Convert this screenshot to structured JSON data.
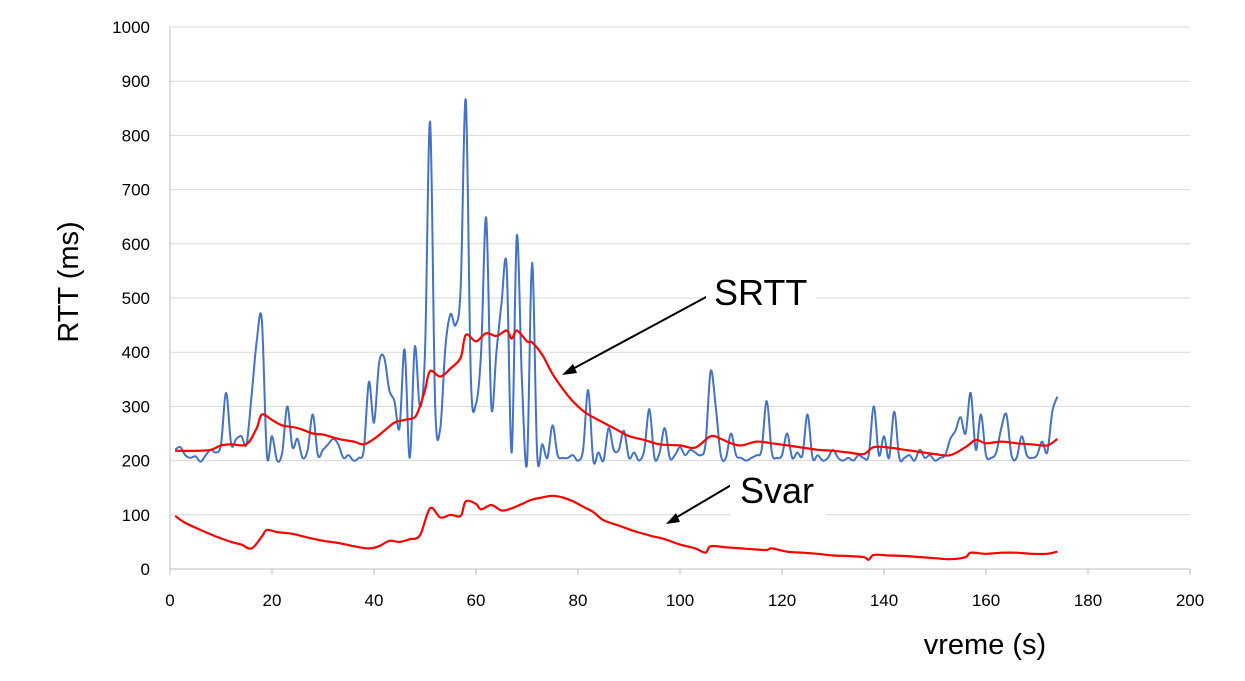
{
  "chart_data": {
    "type": "line",
    "title": "",
    "xlabel": "vreme (s)",
    "ylabel": "RTT (ms)",
    "xlim": [
      0,
      200
    ],
    "ylim": [
      0,
      1000
    ],
    "x_ticks": [
      0,
      20,
      40,
      60,
      80,
      100,
      120,
      140,
      160,
      180,
      200
    ],
    "y_ticks": [
      0,
      100,
      200,
      300,
      400,
      500,
      600,
      700,
      800,
      900,
      1000
    ],
    "grid": true,
    "legend": "none",
    "annotations": [
      {
        "text": "SRTT",
        "target_series": "srtt"
      },
      {
        "text": "Svar",
        "target_series": "svar"
      }
    ],
    "series": [
      {
        "id": "rtt",
        "color": "#4472C4",
        "points": [
          [
            1,
            220
          ],
          [
            2,
            225
          ],
          [
            3,
            210
          ],
          [
            4,
            205
          ],
          [
            5,
            208
          ],
          [
            6,
            198
          ],
          [
            7,
            210
          ],
          [
            8,
            220
          ],
          [
            9,
            215
          ],
          [
            10,
            230
          ],
          [
            11,
            325
          ],
          [
            12,
            230
          ],
          [
            13,
            240
          ],
          [
            14,
            245
          ],
          [
            15,
            230
          ],
          [
            16,
            320
          ],
          [
            17,
            420
          ],
          [
            18,
            460
          ],
          [
            19,
            210
          ],
          [
            20,
            245
          ],
          [
            21,
            200
          ],
          [
            22,
            215
          ],
          [
            23,
            300
          ],
          [
            24,
            225
          ],
          [
            25,
            240
          ],
          [
            26,
            205
          ],
          [
            27,
            220
          ],
          [
            28,
            285
          ],
          [
            29,
            210
          ],
          [
            30,
            220
          ],
          [
            31,
            230
          ],
          [
            32,
            240
          ],
          [
            33,
            230
          ],
          [
            34,
            205
          ],
          [
            35,
            210
          ],
          [
            36,
            200
          ],
          [
            37,
            205
          ],
          [
            38,
            220
          ],
          [
            39,
            345
          ],
          [
            40,
            270
          ],
          [
            41,
            380
          ],
          [
            42,
            390
          ],
          [
            43,
            330
          ],
          [
            44,
            310
          ],
          [
            45,
            260
          ],
          [
            46,
            405
          ],
          [
            47,
            205
          ],
          [
            48,
            410
          ],
          [
            49,
            300
          ],
          [
            50,
            400
          ],
          [
            51,
            825
          ],
          [
            52,
            300
          ],
          [
            53,
            260
          ],
          [
            54,
            410
          ],
          [
            55,
            470
          ],
          [
            56,
            450
          ],
          [
            57,
            520
          ],
          [
            58,
            865
          ],
          [
            59,
            350
          ],
          [
            60,
            305
          ],
          [
            61,
            400
          ],
          [
            62,
            648
          ],
          [
            63,
            300
          ],
          [
            64,
            400
          ],
          [
            65,
            490
          ],
          [
            66,
            560
          ],
          [
            67,
            215
          ],
          [
            68,
            615
          ],
          [
            69,
            350
          ],
          [
            70,
            195
          ],
          [
            71,
            565
          ],
          [
            72,
            210
          ],
          [
            73,
            230
          ],
          [
            74,
            205
          ],
          [
            75,
            265
          ],
          [
            76,
            210
          ],
          [
            77,
            205
          ],
          [
            78,
            205
          ],
          [
            79,
            210
          ],
          [
            80,
            200
          ],
          [
            81,
            220
          ],
          [
            82,
            330
          ],
          [
            83,
            200
          ],
          [
            84,
            215
          ],
          [
            85,
            200
          ],
          [
            86,
            260
          ],
          [
            87,
            220
          ],
          [
            88,
            220
          ],
          [
            89,
            255
          ],
          [
            90,
            205
          ],
          [
            91,
            215
          ],
          [
            92,
            200
          ],
          [
            93,
            220
          ],
          [
            94,
            295
          ],
          [
            95,
            205
          ],
          [
            96,
            215
          ],
          [
            97,
            260
          ],
          [
            98,
            205
          ],
          [
            99,
            210
          ],
          [
            100,
            225
          ],
          [
            101,
            210
          ],
          [
            102,
            220
          ],
          [
            103,
            215
          ],
          [
            104,
            210
          ],
          [
            105,
            230
          ],
          [
            106,
            365
          ],
          [
            107,
            300
          ],
          [
            108,
            210
          ],
          [
            109,
            205
          ],
          [
            110,
            250
          ],
          [
            111,
            210
          ],
          [
            112,
            205
          ],
          [
            113,
            200
          ],
          [
            114,
            205
          ],
          [
            115,
            210
          ],
          [
            116,
            220
          ],
          [
            117,
            310
          ],
          [
            118,
            215
          ],
          [
            119,
            205
          ],
          [
            120,
            210
          ],
          [
            121,
            250
          ],
          [
            122,
            205
          ],
          [
            123,
            215
          ],
          [
            124,
            210
          ],
          [
            125,
            285
          ],
          [
            126,
            205
          ],
          [
            127,
            210
          ],
          [
            128,
            200
          ],
          [
            129,
            205
          ],
          [
            130,
            220
          ],
          [
            131,
            205
          ],
          [
            132,
            200
          ],
          [
            133,
            205
          ],
          [
            134,
            200
          ],
          [
            135,
            210
          ],
          [
            136,
            205
          ],
          [
            137,
            210
          ],
          [
            138,
            300
          ],
          [
            139,
            210
          ],
          [
            140,
            245
          ],
          [
            141,
            205
          ],
          [
            142,
            290
          ],
          [
            143,
            205
          ],
          [
            144,
            205
          ],
          [
            145,
            210
          ],
          [
            146,
            200
          ],
          [
            147,
            220
          ],
          [
            148,
            205
          ],
          [
            149,
            210
          ],
          [
            150,
            200
          ],
          [
            151,
            205
          ],
          [
            152,
            210
          ],
          [
            153,
            240
          ],
          [
            154,
            255
          ],
          [
            155,
            280
          ],
          [
            156,
            250
          ],
          [
            157,
            325
          ],
          [
            158,
            220
          ],
          [
            159,
            285
          ],
          [
            160,
            210
          ],
          [
            161,
            205
          ],
          [
            162,
            215
          ],
          [
            163,
            260
          ],
          [
            164,
            285
          ],
          [
            165,
            210
          ],
          [
            166,
            205
          ],
          [
            167,
            245
          ],
          [
            168,
            210
          ],
          [
            169,
            205
          ],
          [
            170,
            210
          ],
          [
            171,
            235
          ],
          [
            172,
            215
          ],
          [
            173,
            290
          ],
          [
            174,
            318
          ]
        ]
      },
      {
        "id": "srtt",
        "color": "#FF0000",
        "points": [
          [
            1,
            218
          ],
          [
            5,
            218
          ],
          [
            8,
            220
          ],
          [
            10,
            228
          ],
          [
            12,
            230
          ],
          [
            15,
            230
          ],
          [
            17,
            260
          ],
          [
            18,
            285
          ],
          [
            20,
            275
          ],
          [
            22,
            265
          ],
          [
            25,
            260
          ],
          [
            28,
            250
          ],
          [
            30,
            248
          ],
          [
            33,
            240
          ],
          [
            36,
            235
          ],
          [
            38,
            230
          ],
          [
            40,
            240
          ],
          [
            42,
            255
          ],
          [
            44,
            270
          ],
          [
            46,
            275
          ],
          [
            48,
            280
          ],
          [
            49,
            300
          ],
          [
            50,
            330
          ],
          [
            51,
            365
          ],
          [
            53,
            355
          ],
          [
            55,
            370
          ],
          [
            57,
            390
          ],
          [
            58,
            432
          ],
          [
            60,
            420
          ],
          [
            62,
            435
          ],
          [
            64,
            430
          ],
          [
            66,
            440
          ],
          [
            67,
            425
          ],
          [
            68,
            440
          ],
          [
            70,
            420
          ],
          [
            71,
            418
          ],
          [
            73,
            395
          ],
          [
            75,
            360
          ],
          [
            78,
            320
          ],
          [
            80,
            300
          ],
          [
            82,
            285
          ],
          [
            85,
            270
          ],
          [
            88,
            255
          ],
          [
            90,
            245
          ],
          [
            93,
            238
          ],
          [
            96,
            230
          ],
          [
            100,
            228
          ],
          [
            103,
            224
          ],
          [
            106,
            245
          ],
          [
            108,
            240
          ],
          [
            110,
            232
          ],
          [
            112,
            228
          ],
          [
            115,
            235
          ],
          [
            118,
            232
          ],
          [
            121,
            228
          ],
          [
            124,
            224
          ],
          [
            127,
            220
          ],
          [
            130,
            218
          ],
          [
            133,
            215
          ],
          [
            136,
            212
          ],
          [
            138,
            225
          ],
          [
            141,
            224
          ],
          [
            144,
            220
          ],
          [
            147,
            216
          ],
          [
            150,
            212
          ],
          [
            153,
            210
          ],
          [
            156,
            225
          ],
          [
            158,
            238
          ],
          [
            160,
            232
          ],
          [
            163,
            235
          ],
          [
            166,
            232
          ],
          [
            169,
            230
          ],
          [
            172,
            228
          ],
          [
            174,
            240
          ]
        ]
      },
      {
        "id": "svar",
        "color": "#FF0000",
        "points": [
          [
            1,
            98
          ],
          [
            3,
            85
          ],
          [
            6,
            72
          ],
          [
            9,
            60
          ],
          [
            12,
            50
          ],
          [
            14,
            45
          ],
          [
            16,
            38
          ],
          [
            18,
            60
          ],
          [
            19,
            72
          ],
          [
            21,
            68
          ],
          [
            24,
            65
          ],
          [
            27,
            58
          ],
          [
            30,
            52
          ],
          [
            33,
            48
          ],
          [
            36,
            42
          ],
          [
            39,
            38
          ],
          [
            41,
            42
          ],
          [
            43,
            52
          ],
          [
            45,
            50
          ],
          [
            47,
            55
          ],
          [
            49,
            62
          ],
          [
            51,
            112
          ],
          [
            53,
            95
          ],
          [
            55,
            100
          ],
          [
            57,
            98
          ],
          [
            58,
            125
          ],
          [
            60,
            120
          ],
          [
            61,
            110
          ],
          [
            63,
            118
          ],
          [
            65,
            108
          ],
          [
            67,
            112
          ],
          [
            69,
            120
          ],
          [
            71,
            128
          ],
          [
            73,
            132
          ],
          [
            75,
            135
          ],
          [
            77,
            132
          ],
          [
            79,
            125
          ],
          [
            81,
            115
          ],
          [
            83,
            105
          ],
          [
            85,
            90
          ],
          [
            88,
            80
          ],
          [
            91,
            70
          ],
          [
            94,
            62
          ],
          [
            97,
            55
          ],
          [
            100,
            45
          ],
          [
            103,
            38
          ],
          [
            105,
            30
          ],
          [
            106,
            42
          ],
          [
            109,
            40
          ],
          [
            112,
            38
          ],
          [
            115,
            36
          ],
          [
            117,
            35
          ],
          [
            118,
            38
          ],
          [
            121,
            32
          ],
          [
            124,
            30
          ],
          [
            127,
            28
          ],
          [
            130,
            25
          ],
          [
            133,
            24
          ],
          [
            136,
            22
          ],
          [
            137,
            17
          ],
          [
            138,
            26
          ],
          [
            141,
            25
          ],
          [
            144,
            24
          ],
          [
            147,
            22
          ],
          [
            150,
            20
          ],
          [
            153,
            18
          ],
          [
            156,
            22
          ],
          [
            157,
            30
          ],
          [
            160,
            28
          ],
          [
            163,
            30
          ],
          [
            166,
            30
          ],
          [
            169,
            28
          ],
          [
            172,
            28
          ],
          [
            174,
            32
          ]
        ]
      }
    ]
  }
}
